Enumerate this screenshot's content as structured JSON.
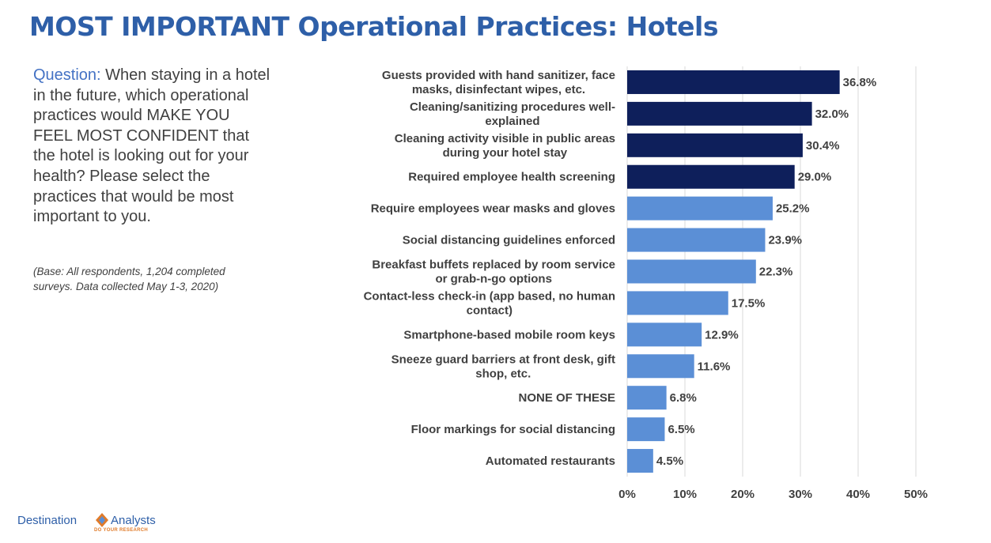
{
  "page": {
    "title": "MOST IMPORTANT Operational Practices: Hotels",
    "question_label": "Question:",
    "question_text": "When staying in a hotel in the future, which operational practices would MAKE YOU FEEL MOST CONFIDENT that the hotel is looking out for your health?  Please select the practices  that would be most important to you.",
    "base_note": "(Base: All respondents, 1,204 completed surveys. Data collected May 1-3, 2020)"
  },
  "logo": {
    "left_text": "Destination",
    "right_text": "Analysts",
    "tagline": "DO YOUR RESEARCH"
  },
  "colors": {
    "title": "#2e5fa8",
    "bar_dark": "#0e1f5b",
    "bar_light": "#5b8fd6",
    "grid": "#d9d9d9",
    "label": "#404040"
  },
  "chart_data": {
    "type": "bar",
    "orientation": "horizontal",
    "categories": [
      [
        "Guests provided with hand sanitizer, face",
        "masks, disinfectant wipes, etc."
      ],
      [
        "Cleaning/sanitizing procedures well-",
        "explained"
      ],
      [
        "Cleaning activity visible in public areas",
        "during your hotel stay"
      ],
      [
        "Required employee health screening"
      ],
      [
        "Require employees wear masks and gloves"
      ],
      [
        "Social distancing guidelines enforced"
      ],
      [
        "Breakfast buffets replaced by room service",
        "or grab-n-go options"
      ],
      [
        "Contact-less check-in (app based, no human",
        "contact)"
      ],
      [
        "Smartphone-based mobile room keys"
      ],
      [
        "Sneeze guard barriers at front desk, gift",
        "shop, etc."
      ],
      [
        "NONE OF THESE"
      ],
      [
        "Floor markings for social distancing"
      ],
      [
        "Automated restaurants"
      ]
    ],
    "values": [
      36.8,
      32.0,
      30.4,
      29.0,
      25.2,
      23.9,
      22.3,
      17.5,
      12.9,
      11.6,
      6.8,
      6.5,
      4.5
    ],
    "value_labels": [
      "36.8%",
      "32.0%",
      "30.4%",
      "29.0%",
      "25.2%",
      "23.9%",
      "22.3%",
      "17.5%",
      "12.9%",
      "11.6%",
      "6.8%",
      "6.5%",
      "4.5%"
    ],
    "highlight_count": 4,
    "xlim": [
      0,
      50
    ],
    "xticks": [
      "0%",
      "10%",
      "20%",
      "30%",
      "40%",
      "50%"
    ],
    "grid": true,
    "legend": "none"
  }
}
